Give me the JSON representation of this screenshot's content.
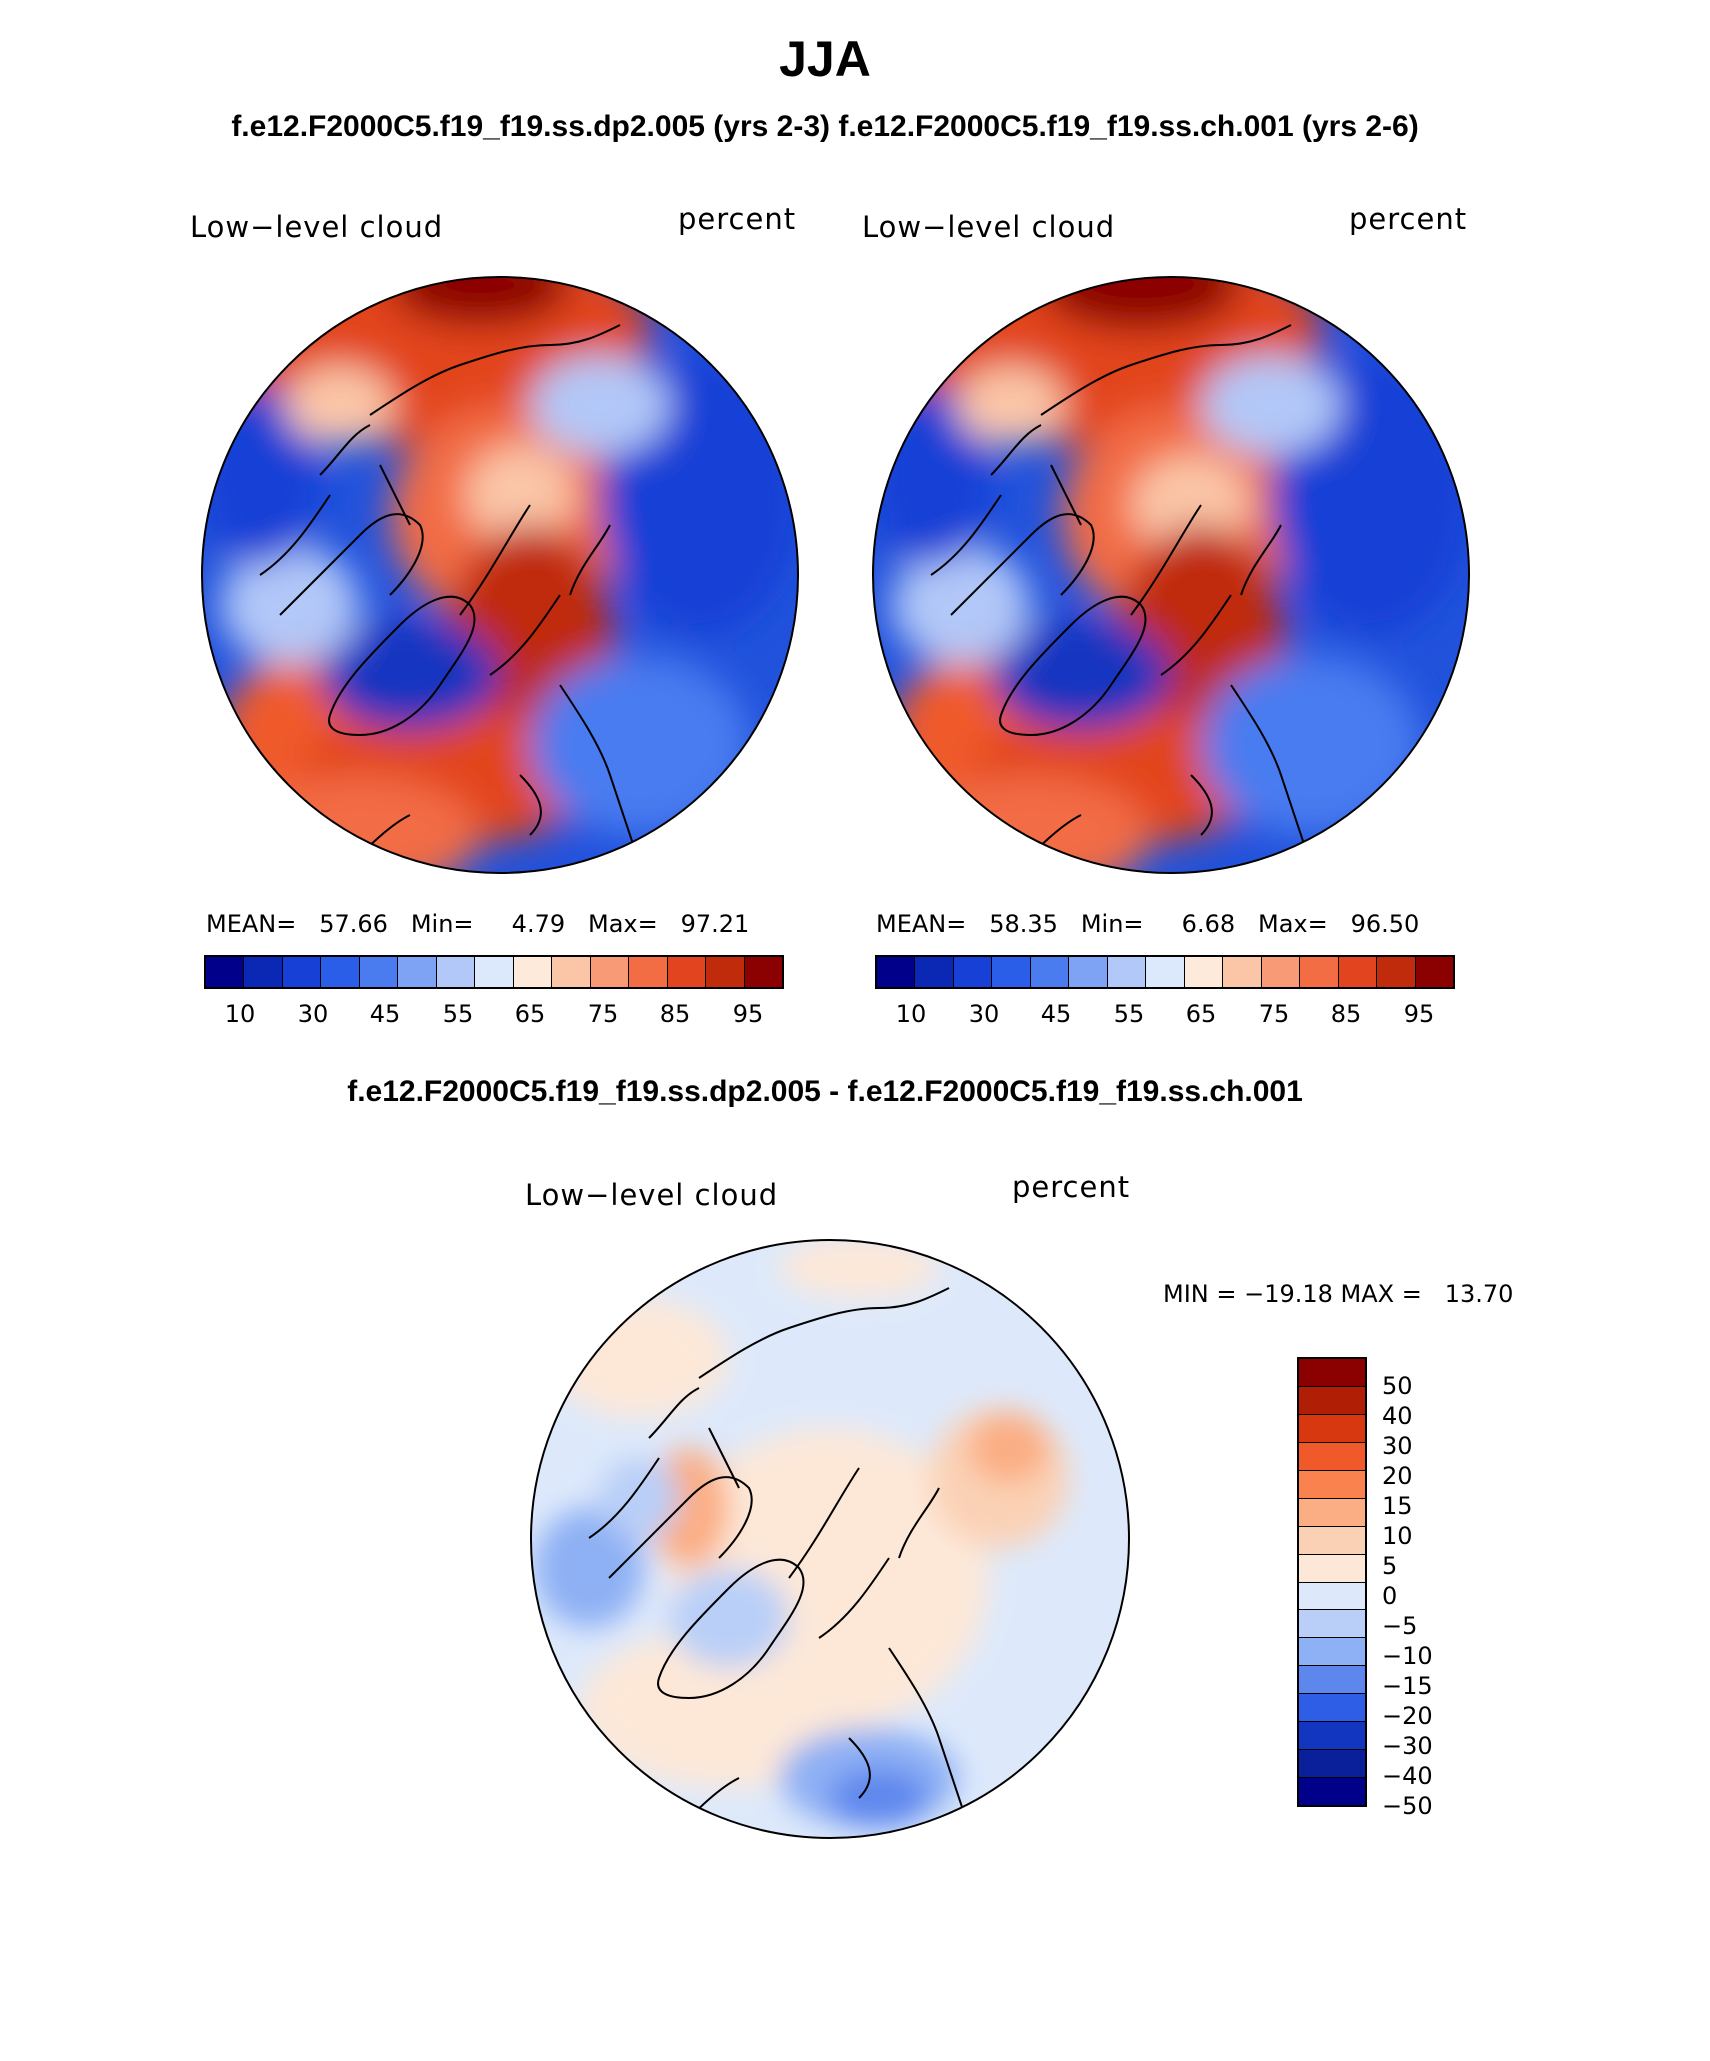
{
  "title": "JJA",
  "subtitle": "f.e12.F2000C5.f19_f19.ss.dp2.005 (yrs 2-3)   f.e12.F2000C5.f19_f19.ss.ch.001 (yrs 2-6)",
  "diff_title": "f.e12.F2000C5.f19_f19.ss.dp2.005 - f.e12.F2000C5.f19_f19.ss.ch.001",
  "panels": [
    {
      "variable": "Low−level cloud",
      "units": "percent",
      "stats": "MEAN=   57.66   Min=     4.79   Max=   97.21"
    },
    {
      "variable": "Low−level cloud",
      "units": "percent",
      "stats": "MEAN=   58.35   Min=     6.68   Max=   96.50"
    }
  ],
  "diff_panel": {
    "variable": "Low−level cloud",
    "units": "percent",
    "minmax": "MIN = −19.18 MAX =   13.70"
  },
  "colorbar_top": {
    "labels": [
      "10",
      "30",
      "45",
      "55",
      "65",
      "75",
      "85",
      "95"
    ],
    "colors": [
      "#00008b",
      "#0a28b4",
      "#1640d6",
      "#2a5ee8",
      "#4a7cf0",
      "#7ea2f4",
      "#b2c8f8",
      "#dce8fb",
      "#fdeadb",
      "#fbc6a8",
      "#f89a76",
      "#f26c44",
      "#e2441f",
      "#c02b0c",
      "#8b0000"
    ]
  },
  "colorbar_diff": {
    "labels": [
      "50",
      "40",
      "30",
      "20",
      "15",
      "10",
      "5",
      "0",
      "−5",
      "−10",
      "−15",
      "−20",
      "−30",
      "−40",
      "−50"
    ],
    "colors": [
      "#8b0000",
      "#b01e05",
      "#d7380f",
      "#f05a2a",
      "#f9824f",
      "#fbad83",
      "#fbd1b5",
      "#fde8d8",
      "#dde9fb",
      "#b9cff8",
      "#8eb0f4",
      "#5e87ee",
      "#2f5ee6",
      "#1236c0",
      "#0a1f9a",
      "#00008b"
    ]
  }
}
